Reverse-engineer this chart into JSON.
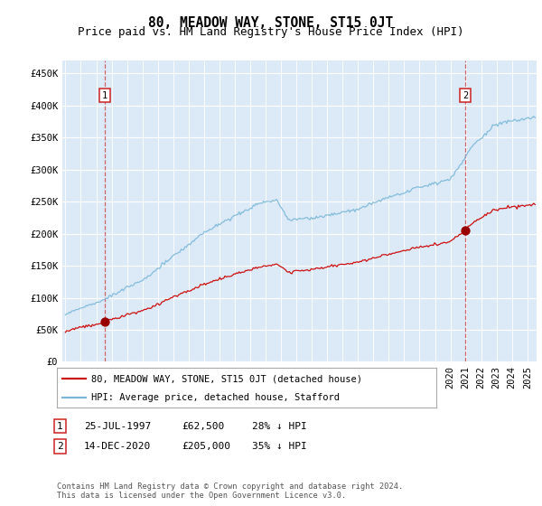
{
  "title": "80, MEADOW WAY, STONE, ST15 0JT",
  "subtitle": "Price paid vs. HM Land Registry's House Price Index (HPI)",
  "plot_bg_color": "#dce9f7",
  "y_ticks": [
    0,
    50000,
    100000,
    150000,
    200000,
    250000,
    300000,
    350000,
    400000,
    450000
  ],
  "y_tick_labels": [
    "£0",
    "£50K",
    "£100K",
    "£150K",
    "£200K",
    "£250K",
    "£300K",
    "£350K",
    "£400K",
    "£450K"
  ],
  "ylim": [
    0,
    470000
  ],
  "xlim_start": 1994.8,
  "xlim_end": 2025.6,
  "sale1_year": 1997.56,
  "sale1_price": 62500,
  "sale2_year": 2020.96,
  "sale2_price": 205000,
  "hpi_color": "#7bb8d8",
  "price_color": "#cc1111",
  "dot_color": "#990000",
  "vline_color": "#cc4444",
  "legend_line1": "80, MEADOW WAY, STONE, ST15 0JT (detached house)",
  "legend_line2": "HPI: Average price, detached house, Stafford",
  "footer": "Contains HM Land Registry data © Crown copyright and database right 2024.\nThis data is licensed under the Open Government Licence v3.0.",
  "title_fontsize": 10.5,
  "subtitle_fontsize": 9,
  "tick_fontsize": 7.5,
  "legend_fontsize": 7.5,
  "annot_fontsize": 8
}
